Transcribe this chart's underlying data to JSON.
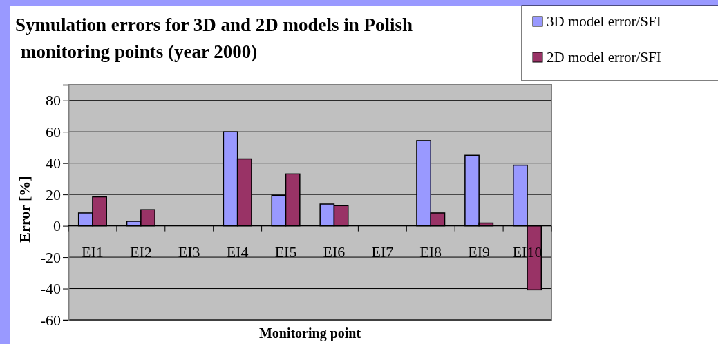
{
  "chart_data": {
    "type": "bar",
    "title": "Symulation errors for 3D and 2D models in Polish monitoring points (year 2000)",
    "xlabel": "Monitoring point",
    "ylabel": "Error [%]",
    "categories": [
      "EI1",
      "EI2",
      "EI3",
      "EI4",
      "EI5",
      "EI6",
      "EI7",
      "EI8",
      "EI9",
      "EI10"
    ],
    "series": [
      {
        "name": "3D model error/SFI",
        "color": "#9999ff",
        "values": [
          8.2,
          2.9,
          null,
          60,
          19.5,
          13.9,
          null,
          54.4,
          45,
          38.7
        ]
      },
      {
        "name": "2D model error/SFI",
        "color": "#993366",
        "values": [
          18.5,
          10.3,
          null,
          42.7,
          33.1,
          12.9,
          null,
          8.2,
          1.8,
          -40.8
        ]
      }
    ],
    "ylim": [
      -60,
      90
    ],
    "yticks": [
      -60,
      -40,
      -20,
      0,
      20,
      40,
      60,
      80
    ],
    "grid": "y",
    "legend": "top right"
  }
}
